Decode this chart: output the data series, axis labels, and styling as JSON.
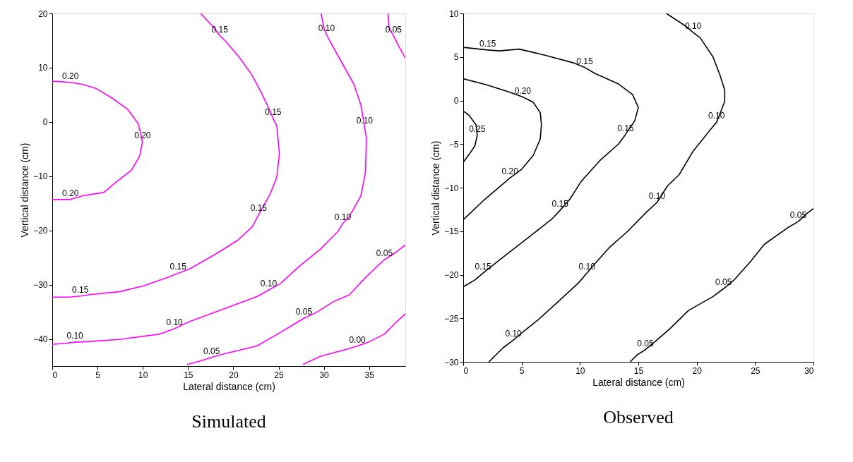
{
  "chart_data": [
    {
      "type": "line",
      "title": "Simulated",
      "xlabel": "Lateral distance (cm)",
      "ylabel": "Vertical distance (cm)",
      "xlim": [
        0,
        39
      ],
      "ylim": [
        -45,
        20
      ],
      "xticks": [
        0,
        5,
        10,
        15,
        20,
        25,
        30,
        35
      ],
      "yticks": [
        -40,
        -30,
        -20,
        -10,
        0,
        10,
        20
      ],
      "grid": false,
      "legend": false,
      "series": [
        {
          "color": "#ff00ff",
          "x": [
            0,
            2.0,
            3.4,
            4.8,
            6.6,
            8.35,
            9.5,
            9.97,
            9.66,
            8.75,
            6.9,
            5.7,
            3.4,
            2.0,
            0
          ],
          "values": [
            7.5,
            7.3,
            6.9,
            6.2,
            4.4,
            2.3,
            -0.3,
            -3.6,
            -6.3,
            -8.9,
            -11.3,
            -13.0,
            -13.6,
            -14.3,
            -14.3
          ]
        },
        {
          "color": "#ff00ff",
          "x": [
            16.4,
            17.9,
            18.5,
            19.2,
            20.7,
            22.0,
            23.1,
            24.1,
            24.4,
            24.8,
            25.1,
            24.8,
            24.1,
            23.4,
            22.8,
            22.1,
            20.5,
            18.4,
            15.3,
            13.9,
            12.7,
            10.1,
            7.4,
            4.3,
            3.1,
            1.9,
            0
          ],
          "values": [
            20,
            17.3,
            15.9,
            14.8,
            11.8,
            8.8,
            5.4,
            1.9,
            0.6,
            -0.7,
            -5.9,
            -10.2,
            -13.2,
            -15.3,
            -17.1,
            -19.3,
            -21.8,
            -24.0,
            -27.0,
            -27.9,
            -28.7,
            -30.2,
            -31.3,
            -31.8,
            -32.1,
            -32.3,
            -32.3
          ]
        },
        {
          "color": "#ff00ff",
          "x": [
            29.7,
            30.0,
            30.3,
            30.7,
            32.0,
            33.3,
            34.1,
            34.5,
            34.7,
            34.6,
            34.1,
            32.8,
            32.1,
            31.6,
            29.6,
            27.3,
            25.2,
            23.9,
            22.6,
            19.2,
            15.3,
            13.5,
            11.9,
            7.4,
            3.8,
            2.5,
            1.4,
            0
          ],
          "values": [
            20,
            17.4,
            16.1,
            14.8,
            10.9,
            7.0,
            3.1,
            -0.9,
            -3.0,
            -9.3,
            -13.6,
            -17.5,
            -18.7,
            -20.1,
            -23.5,
            -26.6,
            -29.8,
            -31.0,
            -32.2,
            -34.3,
            -36.7,
            -38.1,
            -39.1,
            -40.1,
            -40.5,
            -40.6,
            -40.8,
            -41.0
          ]
        },
        {
          "color": "#ff00ff",
          "x": [
            37.1,
            37.2,
            37.7,
            38.2,
            39.0
          ],
          "values": [
            20,
            17.4,
            15.9,
            14.2,
            11.8
          ]
        },
        {
          "color": "#ff00ff",
          "x": [
            39.0,
            38.0,
            36.7,
            35.9,
            34.6,
            32.8,
            31.2,
            29.1,
            27.8,
            26.6,
            24.9,
            22.6,
            18.9,
            17.6,
            16.3,
            14.9
          ],
          "values": [
            -22.7,
            -24.0,
            -25.4,
            -26.6,
            -28.7,
            -31.9,
            -33.0,
            -35.2,
            -36.2,
            -37.4,
            -39.1,
            -41.3,
            -42.8,
            -43.4,
            -44.1,
            -44.7
          ]
        },
        {
          "color": "#ff00ff",
          "x": [
            39.0,
            38.0,
            36.7,
            34.9,
            33.7,
            32.5,
            29.6,
            27.7
          ],
          "values": [
            -35.4,
            -36.9,
            -39.1,
            -40.6,
            -41.3,
            -41.9,
            -43.2,
            -44.7
          ]
        }
      ],
      "annotations": [
        {
          "text": "0.20",
          "x": 2.0,
          "y": 7.3
        },
        {
          "text": "0.20",
          "x": 9.97,
          "y": -3.6
        },
        {
          "text": "0.20",
          "x": 2.0,
          "y": -14.3
        },
        {
          "text": "0.15",
          "x": 18.5,
          "y": 15.9
        },
        {
          "text": "0.15",
          "x": 24.4,
          "y": 0.6
        },
        {
          "text": "0.15",
          "x": 22.8,
          "y": -17.1
        },
        {
          "text": "0.15",
          "x": 13.9,
          "y": -27.9
        },
        {
          "text": "0.15",
          "x": 3.1,
          "y": -32.1
        },
        {
          "text": "0.10",
          "x": 30.3,
          "y": 16.1
        },
        {
          "text": "0.10",
          "x": 34.5,
          "y": -0.9
        },
        {
          "text": "0.10",
          "x": 32.1,
          "y": -18.7
        },
        {
          "text": "0.10",
          "x": 23.9,
          "y": -31.0
        },
        {
          "text": "0.10",
          "x": 13.5,
          "y": -38.1
        },
        {
          "text": "0.10",
          "x": 2.5,
          "y": -40.6
        },
        {
          "text": "0.05",
          "x": 37.7,
          "y": 15.9
        },
        {
          "text": "0.05",
          "x": 36.7,
          "y": -25.4
        },
        {
          "text": "0.05",
          "x": 27.8,
          "y": -36.2
        },
        {
          "text": "0.05",
          "x": 17.6,
          "y": -43.4
        },
        {
          "text": "0.00",
          "x": 33.7,
          "y": -41.3
        }
      ]
    },
    {
      "type": "line",
      "title": "Observed",
      "xlabel": "Lateral distance (cm)",
      "ylabel": "Vertical distance (cm)",
      "xlim": [
        0,
        30
      ],
      "ylim": [
        -30,
        10
      ],
      "xticks": [
        0,
        5,
        10,
        15,
        20,
        25,
        30
      ],
      "yticks": [
        -30,
        -25,
        -20,
        -15,
        -10,
        -5,
        0,
        5,
        10
      ],
      "grid": false,
      "legend": false,
      "series": [
        {
          "color": "#000000",
          "x": [
            0,
            0.5,
            1.1,
            1.2,
            1.0,
            0.5,
            0
          ],
          "values": [
            -1.2,
            -1.7,
            -2.8,
            -4.0,
            -5.2,
            -6.2,
            -7.1
          ]
        },
        {
          "color": "#000000",
          "x": [
            0,
            2.0,
            3.9,
            5.1,
            6.0,
            6.6,
            6.7,
            6.6,
            6.0,
            5.0,
            4.0,
            3.2,
            1.8,
            0
          ],
          "values": [
            2.5,
            1.8,
            1.0,
            0.4,
            -0.2,
            -1.4,
            -2.8,
            -4.4,
            -6.3,
            -7.9,
            -8.9,
            -9.8,
            -11.4,
            -13.7
          ]
        },
        {
          "color": "#000000",
          "x": [
            0,
            2.1,
            3.1,
            4.8,
            7.0,
            9.5,
            10.4,
            11.3,
            13.3,
            14.5,
            15.0,
            14.7,
            13.9,
            13.3,
            11.7,
            10.1,
            9.1,
            8.3,
            7.6,
            5.8,
            3.2,
            1.7,
            1.0,
            0
          ],
          "values": [
            6.1,
            5.8,
            5.7,
            5.9,
            5.2,
            4.3,
            3.8,
            3.1,
            1.9,
            0.7,
            -0.8,
            -2.3,
            -3.9,
            -5.0,
            -6.9,
            -9.3,
            -11.4,
            -12.6,
            -13.6,
            -15.5,
            -18.2,
            -19.8,
            -20.6,
            -21.4
          ]
        },
        {
          "color": "#000000",
          "x": [
            17.4,
            19.1,
            19.7,
            20.3,
            21.4,
            22.0,
            22.4,
            22.4,
            22.0,
            21.7,
            21.2,
            19.7,
            18.5,
            17.5,
            16.6,
            15.7,
            14.1,
            12.5,
            11.3,
            10.6,
            9.9,
            8.2,
            6.4,
            5.0,
            4.3,
            3.4,
            2.2
          ],
          "values": [
            10,
            8.5,
            7.8,
            7.2,
            5.0,
            2.9,
            1.2,
            -0.1,
            -1.5,
            -2.5,
            -3.3,
            -5.8,
            -8.5,
            -9.8,
            -11.7,
            -12.8,
            -15.0,
            -16.9,
            -18.7,
            -19.8,
            -20.9,
            -23.0,
            -25.2,
            -26.7,
            -27.5,
            -28.4,
            -30
          ]
        },
        {
          "color": "#000000",
          "x": [
            30,
            29.4,
            28.7,
            27.8,
            25.8,
            24.6,
            23.2,
            22.3,
            21.4,
            19.3,
            17.7,
            16.5,
            15.6,
            14.9,
            14.3
          ],
          "values": [
            -12.4,
            -13.0,
            -13.9,
            -14.6,
            -16.5,
            -18.5,
            -20.6,
            -21.6,
            -22.5,
            -24.1,
            -26.2,
            -27.6,
            -28.6,
            -29.2,
            -30
          ]
        }
      ],
      "annotations": [
        {
          "text": "0.25",
          "x": 1.2,
          "y": -4.0
        },
        {
          "text": "0.20",
          "x": 5.1,
          "y": 0.4
        },
        {
          "text": "0.20",
          "x": 4.0,
          "y": -8.9
        },
        {
          "text": "0.15",
          "x": 2.1,
          "y": 5.8
        },
        {
          "text": "0.15",
          "x": 10.4,
          "y": 3.8
        },
        {
          "text": "0.15",
          "x": 13.9,
          "y": -3.9
        },
        {
          "text": "0.15",
          "x": 8.3,
          "y": -12.6
        },
        {
          "text": "0.15",
          "x": 1.7,
          "y": -19.8
        },
        {
          "text": "0.10",
          "x": 19.7,
          "y": 7.8
        },
        {
          "text": "0.10",
          "x": 21.7,
          "y": -2.5
        },
        {
          "text": "0.10",
          "x": 16.6,
          "y": -11.7
        },
        {
          "text": "0.10",
          "x": 10.6,
          "y": -19.8
        },
        {
          "text": "0.10",
          "x": 4.3,
          "y": -27.5
        },
        {
          "text": "0.05",
          "x": 28.7,
          "y": -13.9
        },
        {
          "text": "0.05",
          "x": 22.3,
          "y": -21.6
        },
        {
          "text": "0.05",
          "x": 15.6,
          "y": -28.6
        }
      ]
    }
  ]
}
